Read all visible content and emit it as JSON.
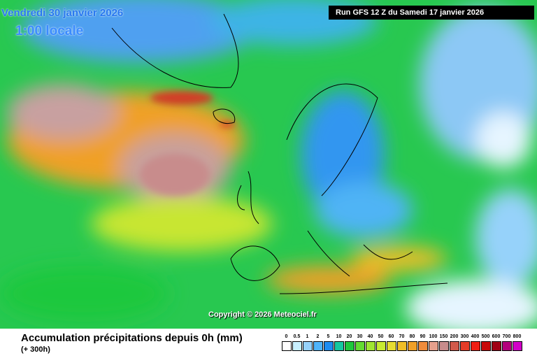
{
  "header": {
    "date": "Vendredi 30 janvier 2026",
    "time": "1:00 locale",
    "run": "Run GFS 12 Z du Samedi 17 janvier 2026"
  },
  "copyright": "Copyright © 2026 Meteociel.fr",
  "footer": {
    "title": "Accumulation précipitations depuis 0h (mm)",
    "lead": "(+ 300h)"
  },
  "legend": [
    {
      "label": 0,
      "color": "#ffffff"
    },
    {
      "label": 0.5,
      "color": "#c8f0ff"
    },
    {
      "label": 1,
      "color": "#96d2fa"
    },
    {
      "label": 2,
      "color": "#50b4fa"
    },
    {
      "label": 5,
      "color": "#1e8cf0"
    },
    {
      "label": 10,
      "color": "#14c8a0"
    },
    {
      "label": 20,
      "color": "#1ec83c"
    },
    {
      "label": 30,
      "color": "#64dc32"
    },
    {
      "label": 40,
      "color": "#a0e632"
    },
    {
      "label": 50,
      "color": "#c8eb32"
    },
    {
      "label": 60,
      "color": "#e6dc32"
    },
    {
      "label": 70,
      "color": "#f0be28"
    },
    {
      "label": 80,
      "color": "#f0a028"
    },
    {
      "label": 90,
      "color": "#f08c3c"
    },
    {
      "label": 100,
      "color": "#e6a08c"
    },
    {
      "label": 150,
      "color": "#c88c8c"
    },
    {
      "label": 200,
      "color": "#d25a4b"
    },
    {
      "label": 300,
      "color": "#e63c28"
    },
    {
      "label": 400,
      "color": "#f01e14"
    },
    {
      "label": 500,
      "color": "#c80a0a"
    },
    {
      "label": 600,
      "color": "#a00014"
    },
    {
      "label": 700,
      "color": "#b4007d"
    },
    {
      "label": 800,
      "color": "#d200c8"
    }
  ]
}
